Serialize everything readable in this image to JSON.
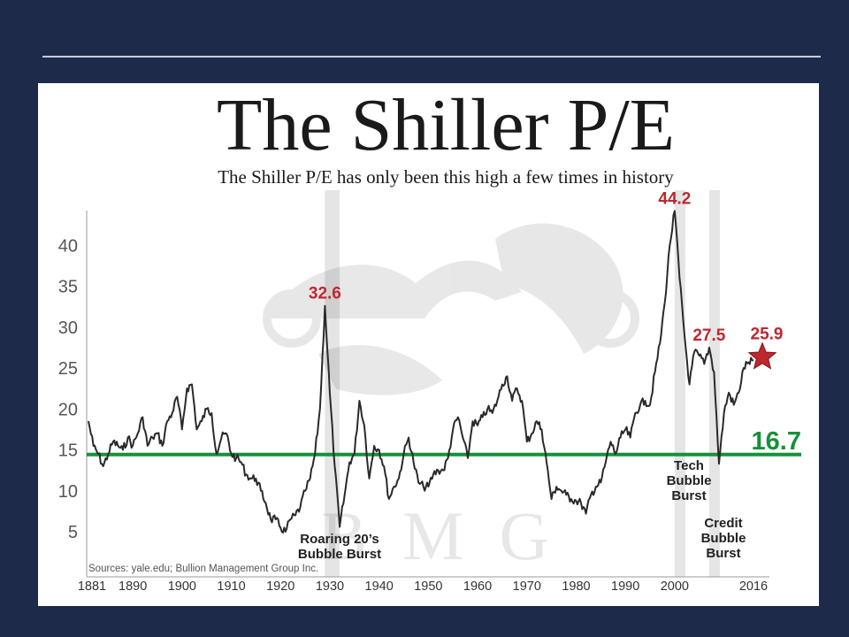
{
  "chart_data": {
    "type": "line",
    "title": "The Shiller P/E",
    "subtitle": "The Shiller P/E has only been this high a few times in history",
    "source": "Sources: yale.edu; Bullion Management Group Inc.",
    "xlabel": "",
    "ylabel": "",
    "xlim": [
      1881,
      2016
    ],
    "ylim": [
      0,
      45
    ],
    "x_ticks": [
      "1881",
      "1890",
      "1900",
      "1910",
      "1920",
      "1930",
      "1940",
      "1950",
      "1960",
      "1970",
      "1980",
      "1990",
      "2000",
      "2016"
    ],
    "y_ticks": [
      "5",
      "10",
      "15",
      "20",
      "25",
      "30",
      "35",
      "40"
    ],
    "grid": false,
    "series": [
      {
        "color": "#2a2a2a",
        "points": [
          [
            1881,
            18.5
          ],
          [
            1882,
            15.5
          ],
          [
            1883,
            14.5
          ],
          [
            1884,
            13.0
          ],
          [
            1885,
            14.5
          ],
          [
            1886,
            16.0
          ],
          [
            1887,
            15.5
          ],
          [
            1888,
            15.0
          ],
          [
            1889,
            16.5
          ],
          [
            1890,
            15.5
          ],
          [
            1891,
            17.0
          ],
          [
            1892,
            19.0
          ],
          [
            1893,
            15.5
          ],
          [
            1894,
            16.5
          ],
          [
            1895,
            17.0
          ],
          [
            1896,
            15.5
          ],
          [
            1897,
            18.5
          ],
          [
            1898,
            19.5
          ],
          [
            1899,
            21.5
          ],
          [
            1900,
            17.5
          ],
          [
            1901,
            22.5
          ],
          [
            1902,
            23.0
          ],
          [
            1903,
            17.5
          ],
          [
            1904,
            18.5
          ],
          [
            1905,
            20.0
          ],
          [
            1906,
            19.5
          ],
          [
            1907,
            14.5
          ],
          [
            1908,
            16.5
          ],
          [
            1909,
            17.0
          ],
          [
            1910,
            14.5
          ],
          [
            1911,
            14.0
          ],
          [
            1912,
            13.5
          ],
          [
            1913,
            12.0
          ],
          [
            1914,
            11.5
          ],
          [
            1915,
            11.5
          ],
          [
            1916,
            10.0
          ],
          [
            1917,
            8.5
          ],
          [
            1918,
            6.5
          ],
          [
            1919,
            6.5
          ],
          [
            1920,
            5.5
          ],
          [
            1921,
            5.0
          ],
          [
            1922,
            6.5
          ],
          [
            1923,
            7.0
          ],
          [
            1924,
            8.0
          ],
          [
            1925,
            10.0
          ],
          [
            1926,
            11.5
          ],
          [
            1927,
            14.5
          ],
          [
            1928,
            20.0
          ],
          [
            1929,
            32.6
          ],
          [
            1930,
            22.0
          ],
          [
            1931,
            13.0
          ],
          [
            1932,
            5.6
          ],
          [
            1933,
            9.5
          ],
          [
            1934,
            13.5
          ],
          [
            1935,
            14.5
          ],
          [
            1936,
            21.0
          ],
          [
            1937,
            18.0
          ],
          [
            1938,
            11.5
          ],
          [
            1939,
            15.5
          ],
          [
            1940,
            15.0
          ],
          [
            1941,
            13.0
          ],
          [
            1942,
            9.0
          ],
          [
            1943,
            10.5
          ],
          [
            1944,
            11.5
          ],
          [
            1945,
            14.5
          ],
          [
            1946,
            16.5
          ],
          [
            1947,
            13.5
          ],
          [
            1948,
            11.0
          ],
          [
            1949,
            10.5
          ],
          [
            1950,
            10.5
          ],
          [
            1951,
            12.0
          ],
          [
            1952,
            12.5
          ],
          [
            1953,
            12.5
          ],
          [
            1954,
            14.0
          ],
          [
            1955,
            17.5
          ],
          [
            1956,
            19.0
          ],
          [
            1957,
            16.5
          ],
          [
            1958,
            14.0
          ],
          [
            1959,
            18.5
          ],
          [
            1960,
            18.0
          ],
          [
            1961,
            19.0
          ],
          [
            1962,
            20.0
          ],
          [
            1963,
            19.5
          ],
          [
            1964,
            21.0
          ],
          [
            1965,
            23.0
          ],
          [
            1966,
            24.0
          ],
          [
            1967,
            21.0
          ],
          [
            1968,
            22.5
          ],
          [
            1969,
            21.0
          ],
          [
            1970,
            16.0
          ],
          [
            1971,
            17.0
          ],
          [
            1972,
            18.5
          ],
          [
            1973,
            17.5
          ],
          [
            1974,
            13.5
          ],
          [
            1975,
            9.0
          ],
          [
            1976,
            10.5
          ],
          [
            1977,
            10.0
          ],
          [
            1978,
            9.5
          ],
          [
            1979,
            9.0
          ],
          [
            1980,
            8.8
          ],
          [
            1981,
            8.5
          ],
          [
            1982,
            7.2
          ],
          [
            1983,
            9.5
          ],
          [
            1984,
            10.5
          ],
          [
            1985,
            11.0
          ],
          [
            1986,
            13.5
          ],
          [
            1987,
            16.0
          ],
          [
            1988,
            14.5
          ],
          [
            1989,
            16.5
          ],
          [
            1990,
            17.5
          ],
          [
            1991,
            16.5
          ],
          [
            1992,
            19.5
          ],
          [
            1993,
            20.5
          ],
          [
            1994,
            21.0
          ],
          [
            1995,
            20.5
          ],
          [
            1996,
            24.5
          ],
          [
            1997,
            28.0
          ],
          [
            1998,
            33.0
          ],
          [
            1999,
            40.0
          ],
          [
            2000,
            44.2
          ],
          [
            2001,
            36.0
          ],
          [
            2002,
            29.0
          ],
          [
            2003,
            23.0
          ],
          [
            2004,
            27.0
          ],
          [
            2005,
            26.5
          ],
          [
            2006,
            25.5
          ],
          [
            2007,
            27.5
          ],
          [
            2008,
            24.5
          ],
          [
            2009,
            13.3
          ],
          [
            2010,
            19.5
          ],
          [
            2011,
            22.0
          ],
          [
            2012,
            20.5
          ],
          [
            2013,
            22.0
          ],
          [
            2014,
            25.0
          ],
          [
            2015,
            25.7
          ],
          [
            2016,
            25.9
          ]
        ]
      }
    ],
    "reference_line": {
      "value": 16.7,
      "label": "16.7",
      "color": "#16913a"
    },
    "current_marker": {
      "x": 2016,
      "y": 25.9,
      "label": "25.9",
      "color": "#c0272d"
    },
    "peaks": [
      {
        "x": 1929,
        "y": 32.6,
        "label": "32.6"
      },
      {
        "x": 2000,
        "y": 44.2,
        "label": "44.2"
      },
      {
        "x": 2007,
        "y": 27.5,
        "label": "27.5"
      }
    ],
    "shaded_periods": [
      {
        "from": 1929,
        "to": 1932,
        "label_lines": [
          "Roaring 20’s",
          "Bubble Burst"
        ]
      },
      {
        "from": 2000,
        "to": 2002,
        "label_lines": [
          "Tech",
          "Bubble",
          "Burst"
        ]
      },
      {
        "from": 2007,
        "to": 2009,
        "label_lines": [
          "Credit",
          "Bubble",
          "Burst"
        ]
      }
    ],
    "watermark": "BMG",
    "colors": {
      "line": "#2a2a2a",
      "peak_label": "#c0272d",
      "shade": "#dcdcdc",
      "axis": "#555555"
    }
  }
}
